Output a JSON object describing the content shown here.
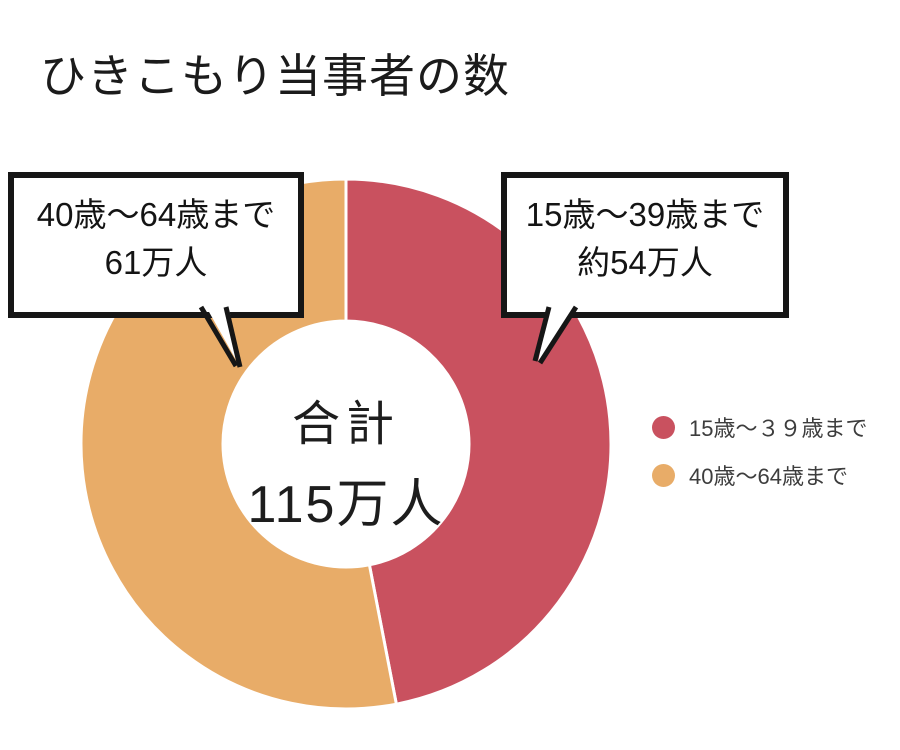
{
  "title": "ひきこもり当事者の数",
  "chart_data": {
    "type": "pie",
    "subtype": "donut",
    "title": "ひきこもり当事者の数",
    "categories": [
      "15歳～39歳まで",
      "40歳～64歳まで"
    ],
    "values": [
      54,
      61
    ],
    "value_unit": "万人",
    "value_labels": [
      "約54万人",
      "61万人"
    ],
    "total": 115,
    "total_label": "合計 115万人",
    "colors": [
      "#c9515f",
      "#e8ac68"
    ],
    "start_angle": "12 o'clock, clockwise, 15-39 segment first",
    "legend_position": "right",
    "segment_separator_color": "#ffffff"
  },
  "center_label": {
    "line1": "合計",
    "line2": "115万人"
  },
  "callout_left": {
    "line1": "40歳～64歳まで",
    "line2": "61万人"
  },
  "callout_right": {
    "line1": "15歳～39歳まで",
    "line2": "約54万人"
  },
  "legend": {
    "items": [
      {
        "label": "15歳～３９歳まで",
        "color": "#c9515f"
      },
      {
        "label": "40歳～64歳まで",
        "color": "#e8ac68"
      }
    ]
  }
}
